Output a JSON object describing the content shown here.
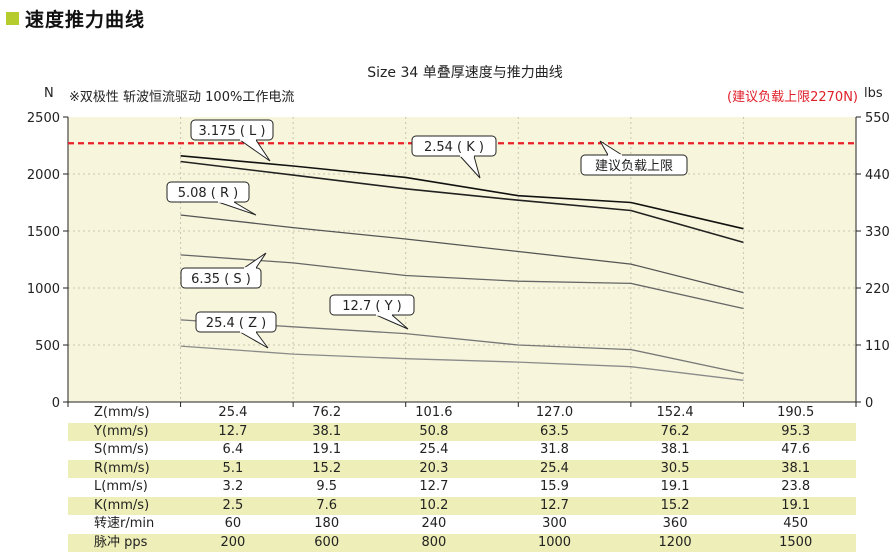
{
  "header": {
    "title": "速度推力曲线"
  },
  "chart_data": {
    "type": "line",
    "title": "Size 34 单叠厚速度与推力曲线",
    "ylabel": "N",
    "y2label": "lbs",
    "note": "※双极性 斩波恒流驱动 100%工作电流",
    "limit_note": "(建议负载上限2270N)",
    "ylim": [
      0,
      2500
    ],
    "y2lim": [
      0,
      550
    ],
    "yticks": [
      0,
      500,
      1000,
      1500,
      2000,
      2500
    ],
    "y2ticks": [
      0,
      110,
      220,
      330,
      440,
      550
    ],
    "x_index": [
      1,
      2,
      3,
      4,
      5,
      6
    ],
    "xlim": [
      0,
      7
    ],
    "grid": true,
    "limit_line": {
      "value": 2270,
      "label": "建议负载上限",
      "color": "#e8202a"
    },
    "series": [
      {
        "name": "3.175 ( L )",
        "color": "#111111",
        "values": [
          2160,
          2070,
          1970,
          1810,
          1750,
          1520
        ]
      },
      {
        "name": "2.54 ( K )",
        "color": "#222222",
        "values": [
          2110,
          1990,
          1870,
          1770,
          1680,
          1400
        ]
      },
      {
        "name": "5.08 ( R )",
        "color": "#555555",
        "values": [
          1640,
          1530,
          1430,
          1320,
          1210,
          960
        ]
      },
      {
        "name": "6.35 ( S )",
        "color": "#666666",
        "values": [
          1290,
          1220,
          1110,
          1060,
          1040,
          820
        ]
      },
      {
        "name": "12.7 ( Y )",
        "color": "#777777",
        "values": [
          720,
          660,
          600,
          500,
          460,
          250
        ]
      },
      {
        "name": "25.4 ( Z )",
        "color": "#8a8a8a",
        "values": [
          490,
          420,
          380,
          350,
          310,
          190
        ]
      }
    ],
    "table": {
      "rows": [
        {
          "label": "Z(mm/s)",
          "values": [
            "25.4",
            "76.2",
            "101.6",
            "127.0",
            "152.4",
            "190.5"
          ]
        },
        {
          "label": "Y(mm/s)",
          "values": [
            "12.7",
            "38.1",
            "50.8",
            "63.5",
            "76.2",
            "95.3"
          ]
        },
        {
          "label": "S(mm/s)",
          "values": [
            "6.4",
            "19.1",
            "25.4",
            "31.8",
            "38.1",
            "47.6"
          ]
        },
        {
          "label": "R(mm/s)",
          "values": [
            "5.1",
            "15.2",
            "20.3",
            "25.4",
            "30.5",
            "38.1"
          ]
        },
        {
          "label": "L(mm/s)",
          "values": [
            "3.2",
            "9.5",
            "12.7",
            "15.9",
            "19.1",
            "23.8"
          ]
        },
        {
          "label": "K(mm/s)",
          "values": [
            "2.5",
            "7.6",
            "10.2",
            "12.7",
            "15.2",
            "19.1"
          ]
        },
        {
          "label": "转速r/min",
          "values": [
            "60",
            "180",
            "240",
            "300",
            "360",
            "450"
          ]
        },
        {
          "label": "脉冲 pps",
          "values": [
            "200",
            "600",
            "800",
            "1000",
            "1200",
            "1500"
          ]
        }
      ]
    }
  },
  "colors": {
    "plot_bg": "#f7f6dc",
    "table_shade": "#eeeeb8",
    "accent": "#b5cc2c",
    "limit": "#e8202a"
  }
}
